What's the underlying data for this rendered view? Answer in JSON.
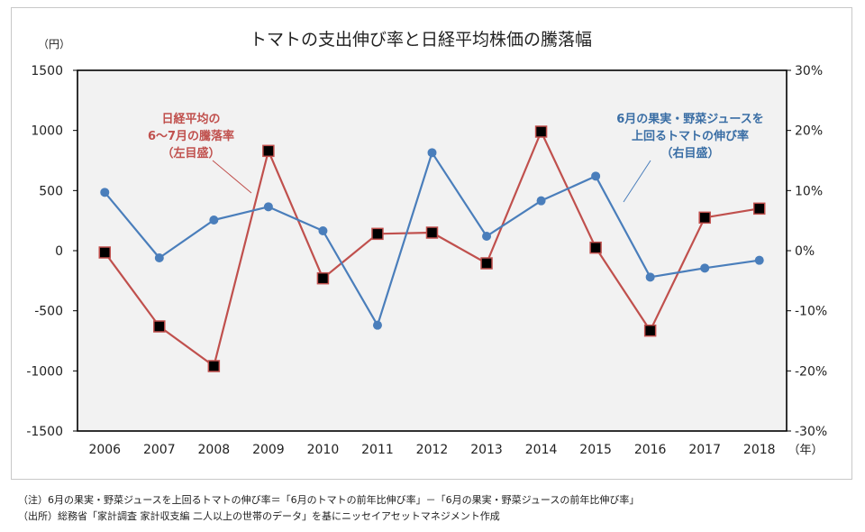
{
  "chart_data": {
    "type": "line",
    "title": "トマトの支出伸び率と日経平均株価の騰落幅",
    "left_axis_unit": "（円）",
    "x_axis_unit": "（年）",
    "categories": [
      "2006",
      "2007",
      "2008",
      "2009",
      "2010",
      "2011",
      "2012",
      "2013",
      "2014",
      "2015",
      "2016",
      "2017",
      "2018"
    ],
    "left_axis": {
      "range": [
        -1500,
        1500
      ],
      "ticks": [
        1500,
        1000,
        500,
        0,
        -500,
        -1000,
        -1500
      ],
      "tick_labels": [
        "1500",
        "1000",
        "500",
        "0",
        "-500",
        "-1000",
        "-1500"
      ]
    },
    "right_axis": {
      "range": [
        -30,
        30
      ],
      "ticks": [
        30,
        20,
        10,
        0,
        -10,
        -20,
        -30
      ],
      "tick_labels": [
        "30%",
        "20%",
        "10%",
        "0%",
        "-10%",
        "-20%",
        "-30%"
      ]
    },
    "series": [
      {
        "name": "日経平均の6〜7月の騰落率（左目盛）",
        "axis": "left",
        "color": "#c0504d",
        "marker": "square",
        "values": [
          -15,
          -630,
          -960,
          830,
          -230,
          140,
          150,
          -105,
          990,
          25,
          -665,
          275,
          350
        ]
      },
      {
        "name": "6月の果実・野菜ジュースを上回るトマトの伸び率（右目盛）",
        "axis": "right",
        "color": "#4a7ebb",
        "marker": "circle",
        "values": [
          9.7,
          -1.2,
          5.1,
          7.3,
          3.3,
          -12.4,
          16.3,
          2.4,
          8.3,
          12.4,
          -4.4,
          -2.9,
          -1.6
        ]
      }
    ],
    "annotations": {
      "red_label": [
        "日経平均の",
        "6～7月の騰落率",
        "（左目盛）"
      ],
      "blue_label": [
        "6月の果実・野菜ジュースを",
        "上回るトマトの伸び率",
        "（右目盛）"
      ]
    }
  },
  "notes": {
    "note1": "（注）6月の果実・野菜ジュースを上回るトマトの伸び率＝「6月のトマトの前年比伸び率」－「6月の果実・野菜ジュースの前年比伸び率」",
    "note2": "（出所）総務省「家計調査 家計収支編 二人以上の世帯のデータ」を基にニッセイアセットマネジメント作成"
  }
}
